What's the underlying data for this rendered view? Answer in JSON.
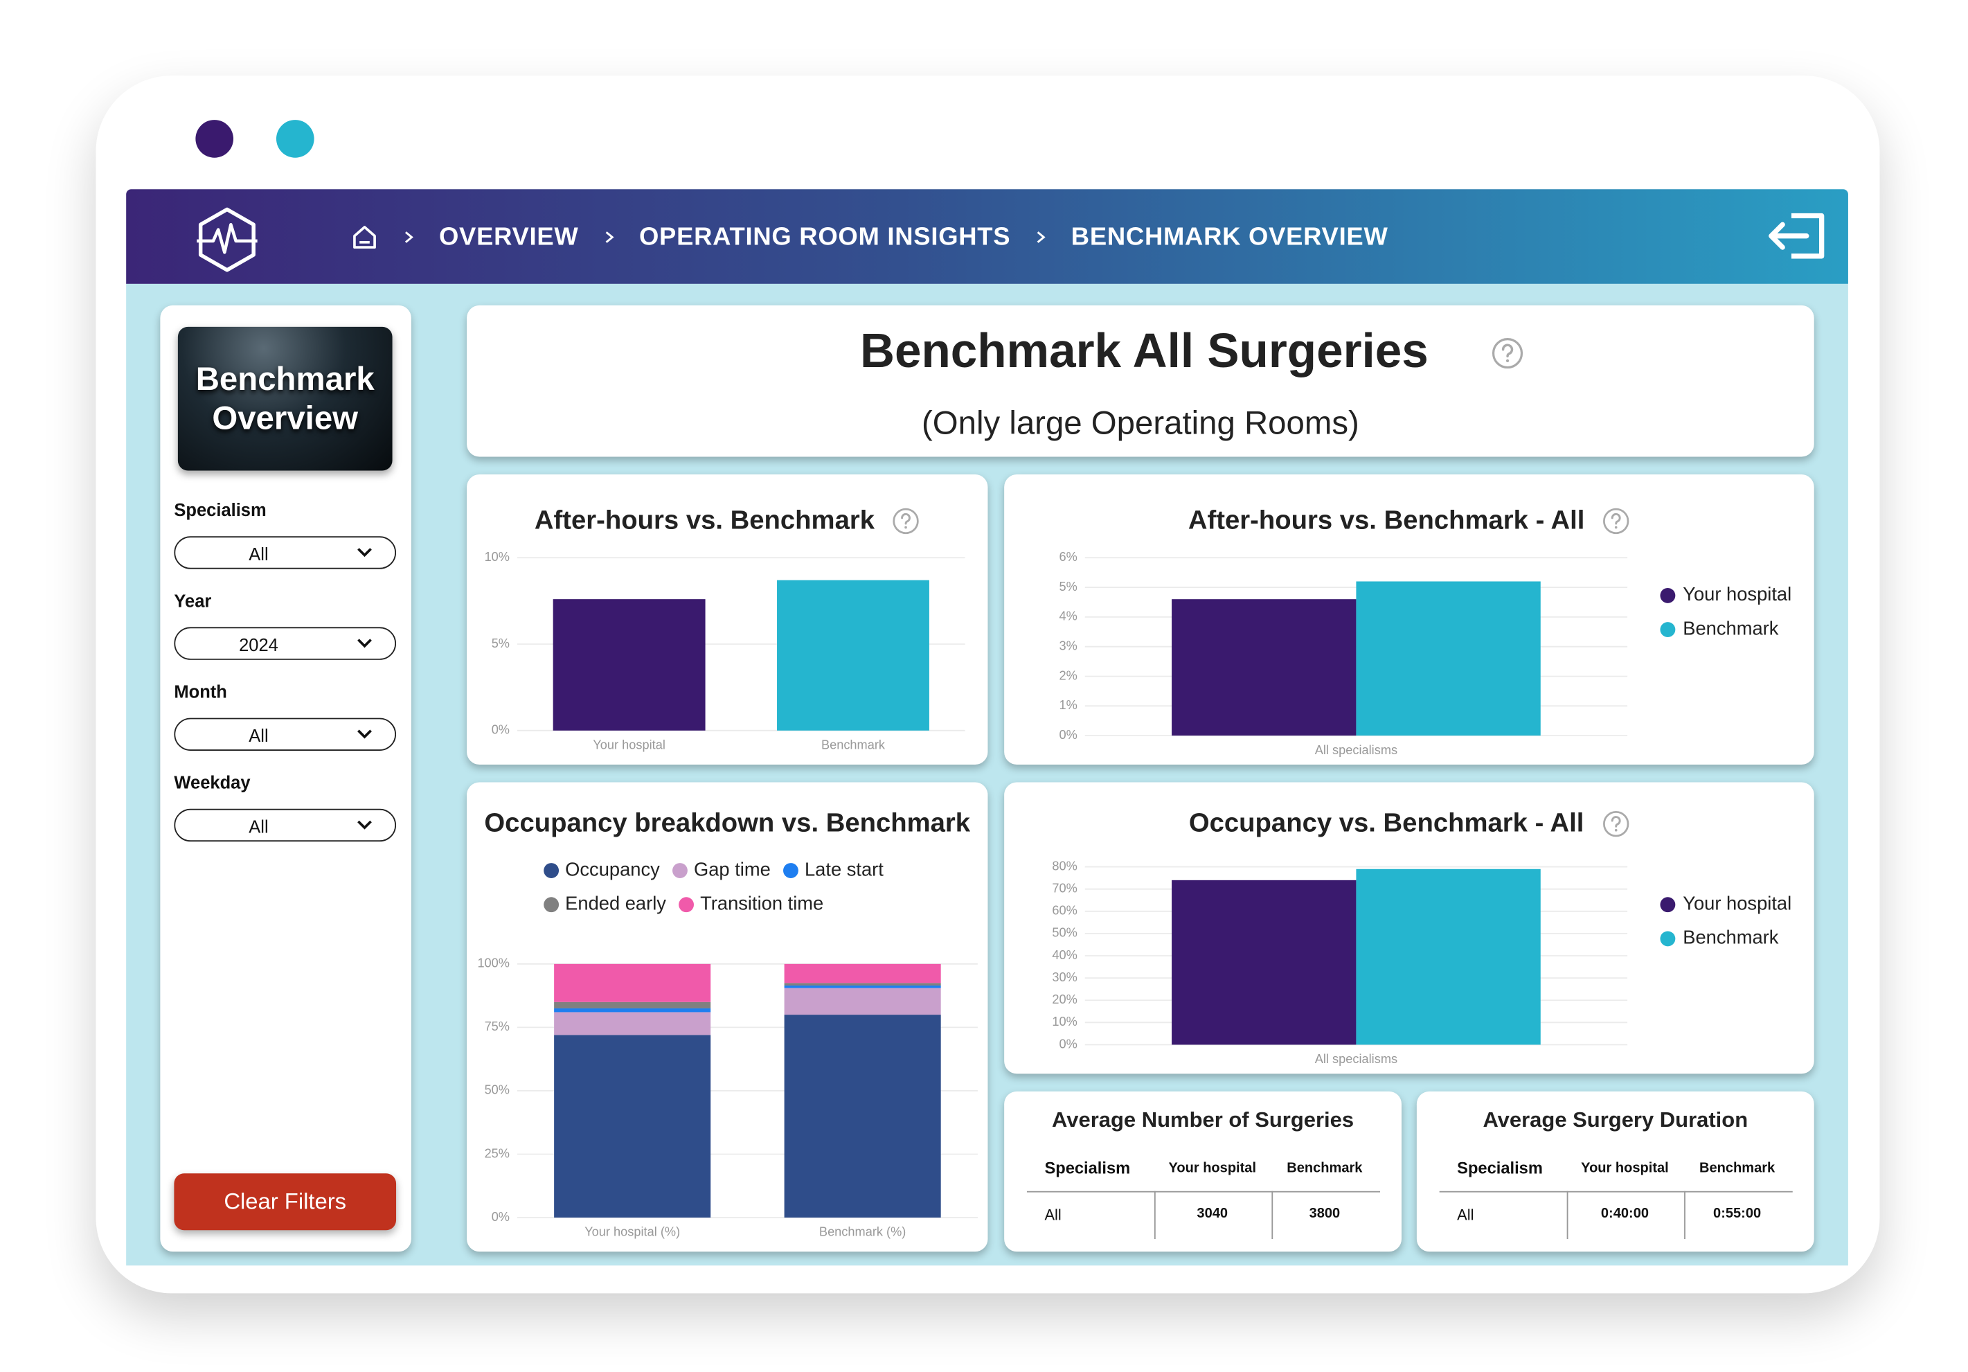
{
  "nav": {
    "breadcrumbs": [
      "OVERVIEW",
      "OPERATING ROOM INSIGHTS",
      "BENCHMARK OVERVIEW"
    ]
  },
  "sidebar": {
    "card_title": "Benchmark Overview",
    "filters": [
      {
        "label": "Specialism",
        "value": "All"
      },
      {
        "label": "Year",
        "value": "2024"
      },
      {
        "label": "Month",
        "value": "All"
      },
      {
        "label": "Weekday",
        "value": "All"
      }
    ],
    "clear_button": "Clear Filters"
  },
  "header": {
    "title": "Benchmark All Surgeries",
    "subtitle": "(Only large Operating Rooms)"
  },
  "charts": [
    {
      "type": "bar",
      "title": "After-hours vs. Benchmark",
      "help_icon": true,
      "categories": [
        "Your hospital",
        "Benchmark"
      ],
      "values": [
        7.6,
        8.7
      ],
      "colors": [
        "#3a1a6e",
        "#25b5cf"
      ],
      "ylim": [
        0,
        10
      ],
      "yticks": [
        {
          "value": 0,
          "label": "0%"
        },
        {
          "value": 5,
          "label": "5%"
        },
        {
          "value": 10,
          "label": "10%"
        }
      ],
      "grid": true
    },
    {
      "type": "bar",
      "title": "After-hours vs. Benchmark - All",
      "help_icon": true,
      "categories": [
        "All specialisms"
      ],
      "series": [
        {
          "name": "Your hospital",
          "color": "#3a1a6e",
          "values": [
            4.6
          ]
        },
        {
          "name": "Benchmark",
          "color": "#25b5cf",
          "values": [
            5.2
          ]
        }
      ],
      "ylim": [
        0,
        6
      ],
      "yticks": [
        {
          "value": 0,
          "label": "0%"
        },
        {
          "value": 1,
          "label": "1%"
        },
        {
          "value": 2,
          "label": "2%"
        },
        {
          "value": 3,
          "label": "3%"
        },
        {
          "value": 4,
          "label": "4%"
        },
        {
          "value": 5,
          "label": "5%"
        },
        {
          "value": 6,
          "label": "6%"
        }
      ],
      "grid": true,
      "legend": "right"
    },
    {
      "type": "stacked_bar",
      "title": "Occupancy breakdown vs. Benchmark",
      "help_icon": false,
      "categories": [
        "Your hospital (%)",
        "Benchmark (%)"
      ],
      "series": [
        {
          "name": "Occupancy",
          "color": "#2f4d8a",
          "values": [
            72,
            80
          ]
        },
        {
          "name": "Gap time",
          "color": "#c9a0cc",
          "values": [
            9,
            10.5
          ]
        },
        {
          "name": "Late start",
          "color": "#1e7ef0",
          "values": [
            1.5,
            1
          ]
        },
        {
          "name": "Ended early",
          "color": "#808080",
          "values": [
            2.5,
            1
          ]
        },
        {
          "name": "Transition time",
          "color": "#f05aaa",
          "values": [
            15,
            7.5
          ]
        }
      ],
      "ylim": [
        0,
        100
      ],
      "yticks": [
        {
          "value": 0,
          "label": "0%"
        },
        {
          "value": 25,
          "label": "25%"
        },
        {
          "value": 50,
          "label": "50%"
        },
        {
          "value": 75,
          "label": "75%"
        },
        {
          "value": 100,
          "label": "100%"
        }
      ],
      "grid": true,
      "legend": "top"
    },
    {
      "type": "bar",
      "title": "Occupancy vs. Benchmark - All",
      "help_icon": true,
      "categories": [
        "All specialisms"
      ],
      "series": [
        {
          "name": "Your hospital",
          "color": "#3a1a6e",
          "values": [
            74
          ]
        },
        {
          "name": "Benchmark",
          "color": "#25b5cf",
          "values": [
            79
          ]
        }
      ],
      "ylim": [
        0,
        80
      ],
      "yticks": [
        {
          "value": 0,
          "label": "0%"
        },
        {
          "value": 10,
          "label": "10%"
        },
        {
          "value": 20,
          "label": "20%"
        },
        {
          "value": 30,
          "label": "30%"
        },
        {
          "value": 40,
          "label": "40%"
        },
        {
          "value": 50,
          "label": "50%"
        },
        {
          "value": 60,
          "label": "60%"
        },
        {
          "value": 70,
          "label": "70%"
        },
        {
          "value": 80,
          "label": "80%"
        }
      ],
      "grid": true,
      "legend": "right"
    }
  ],
  "tables": [
    {
      "title": "Average Number of Surgeries",
      "columns": [
        "Specialism",
        "Your hospital",
        "Benchmark"
      ],
      "rows": [
        [
          "All",
          3040,
          3800
        ]
      ]
    },
    {
      "title": "Average Surgery Duration",
      "columns": [
        "Specialism",
        "Your hospital",
        "Benchmark"
      ],
      "rows": [
        [
          "All",
          "0:40:00",
          "0:55:00"
        ]
      ]
    }
  ]
}
